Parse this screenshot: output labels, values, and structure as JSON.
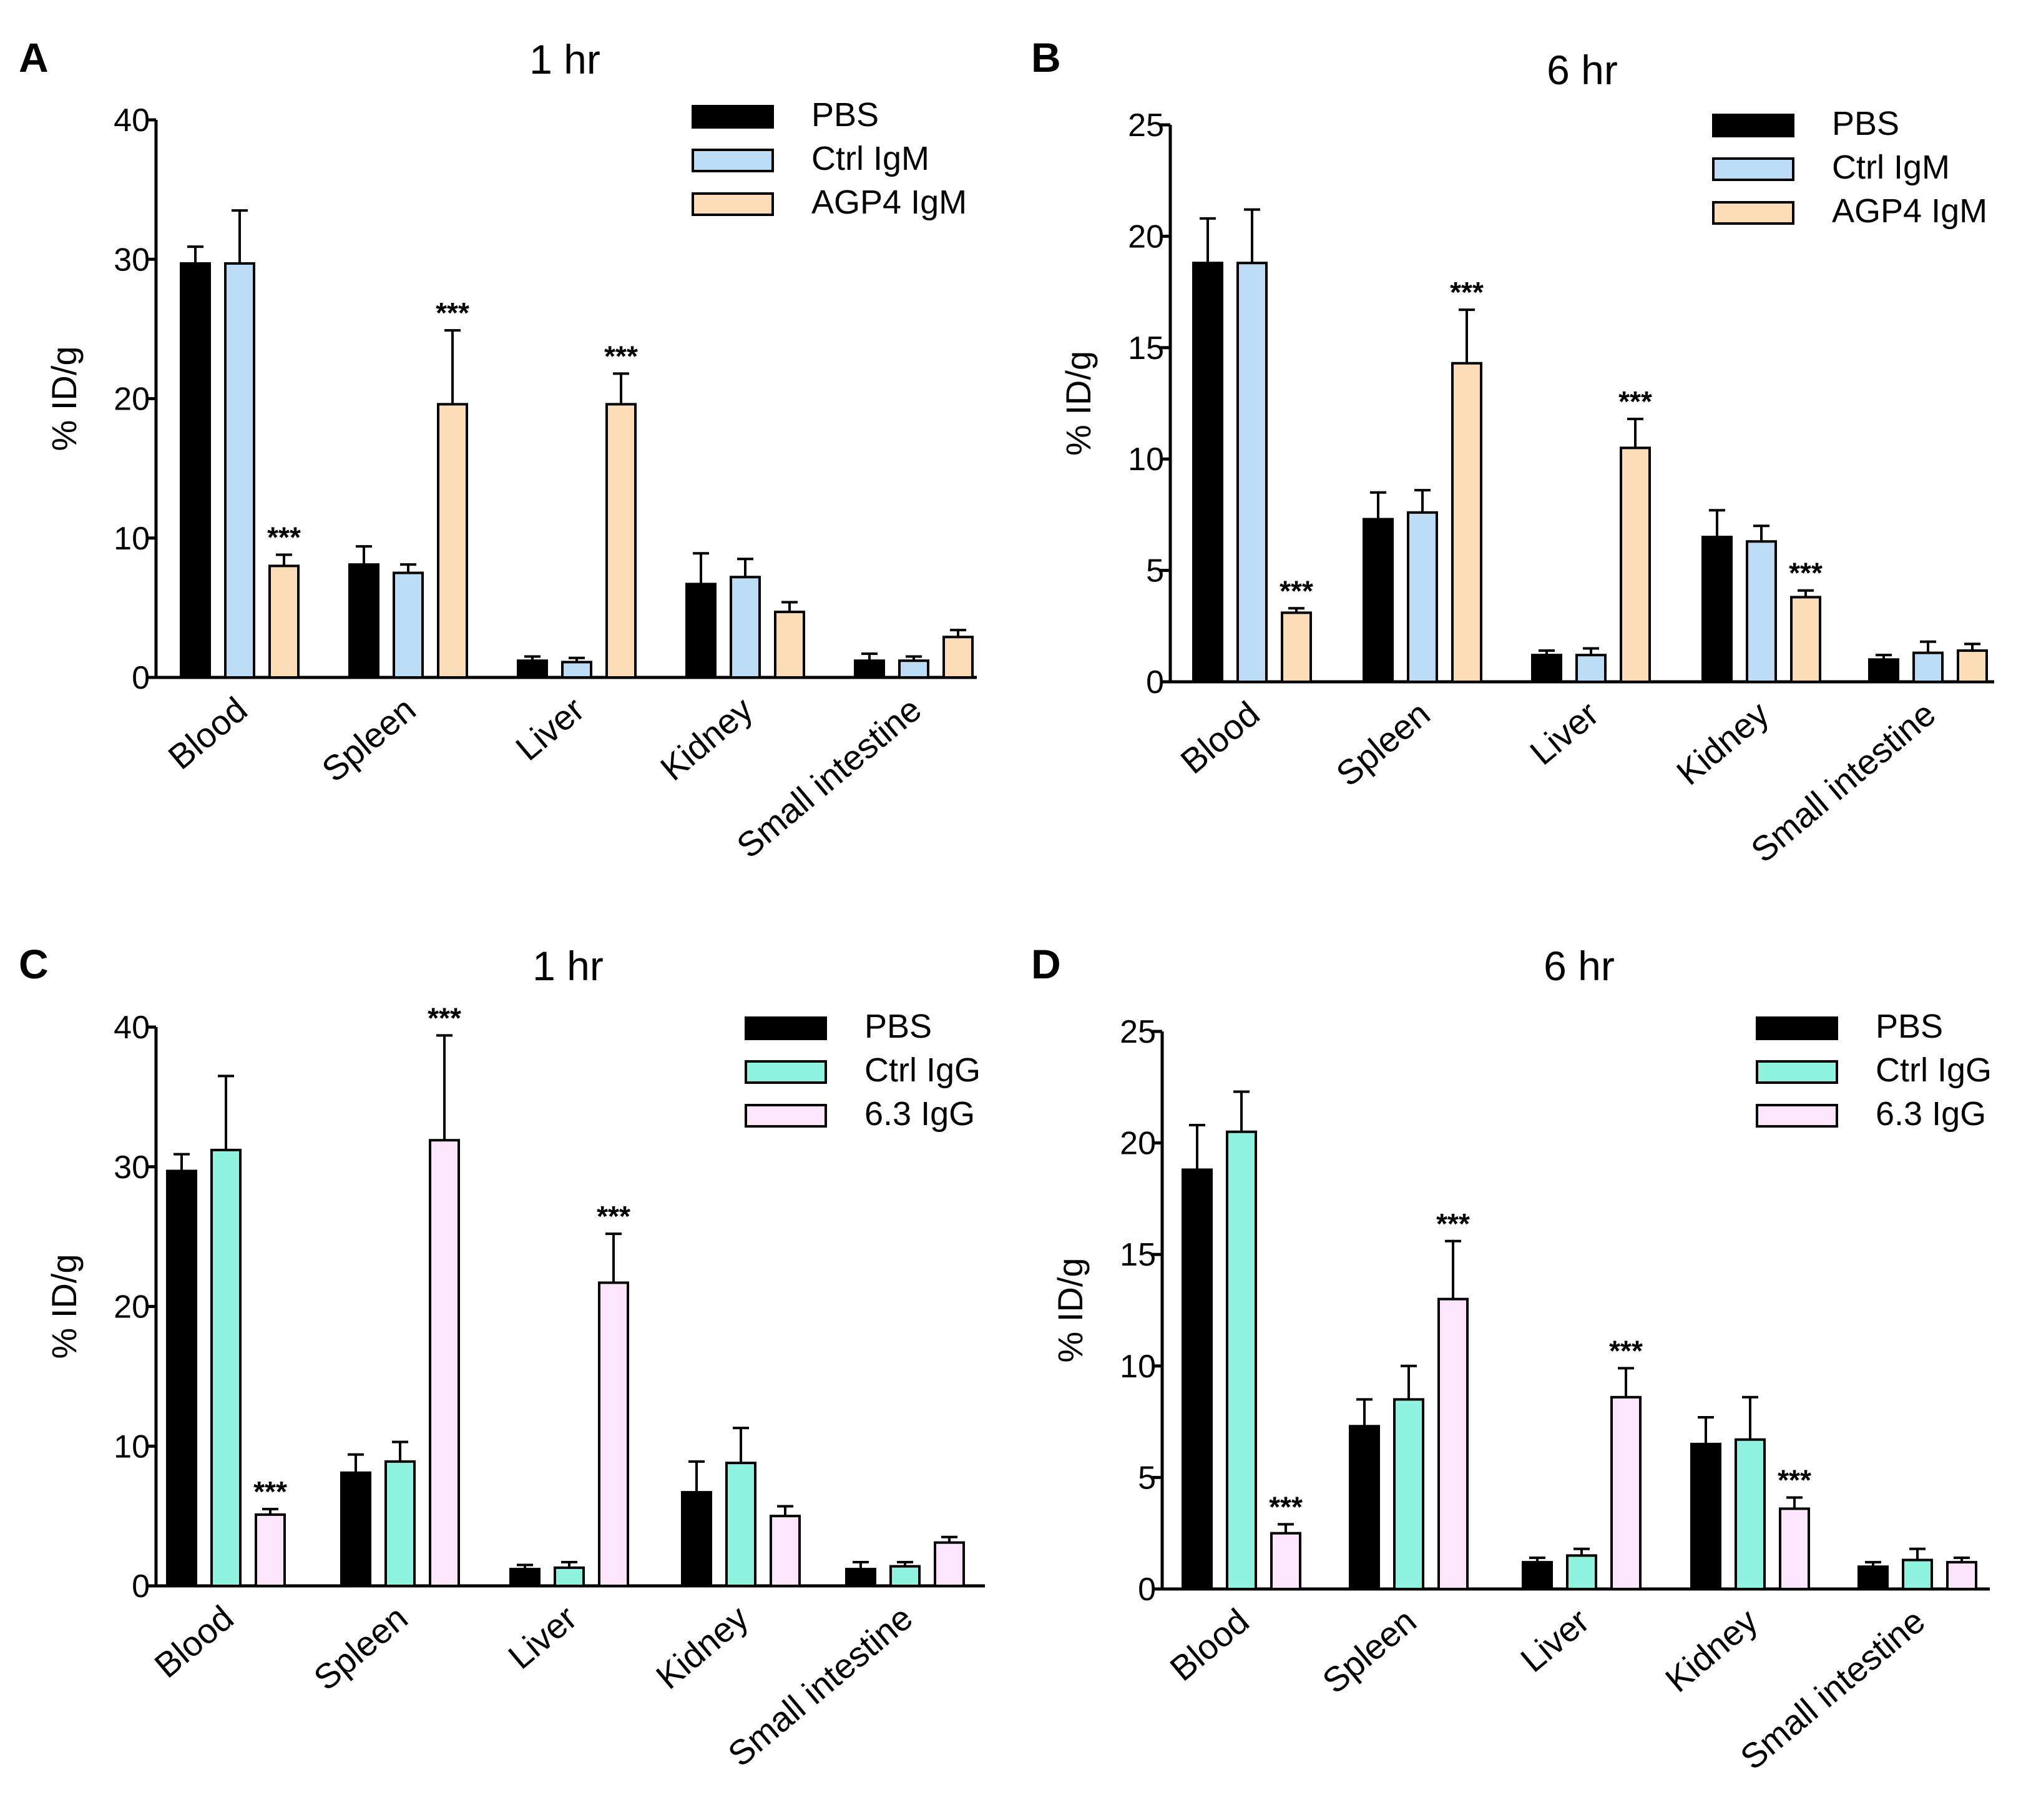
{
  "figure": {
    "panels": [
      {
        "letter": "A",
        "chart_data": {
          "type": "bar",
          "title": "1 hr",
          "xlabel": "",
          "ylabel": "% ID/g",
          "ylim": [
            0,
            40
          ],
          "yticks": [
            0,
            10,
            20,
            30,
            40
          ],
          "categories": [
            "Blood",
            "Spleen",
            "Liver",
            "Kidney",
            "Small intestine"
          ],
          "legend_position": "top-right",
          "series": [
            {
              "name": "PBS",
              "color": "#000000",
              "values": [
                29.7,
                8.1,
                1.2,
                6.7,
                1.2
              ],
              "errors": [
                1.2,
                1.3,
                0.3,
                2.2,
                0.5
              ],
              "sig": [
                "",
                "",
                "",
                "",
                ""
              ]
            },
            {
              "name": "Ctrl IgM",
              "color": "#bcdcf5",
              "values": [
                29.7,
                7.5,
                1.1,
                7.2,
                1.2
              ],
              "errors": [
                3.8,
                0.6,
                0.3,
                1.3,
                0.3
              ],
              "sig": [
                "",
                "",
                "",
                "",
                ""
              ]
            },
            {
              "name": "AGP4 IgM",
              "color": "#fbdcb7",
              "values": [
                8.0,
                19.6,
                19.6,
                4.7,
                2.9
              ],
              "errors": [
                0.8,
                5.3,
                2.2,
                0.7,
                0.5
              ],
              "sig": [
                "***",
                "***",
                "***",
                "",
                ""
              ]
            }
          ]
        }
      },
      {
        "letter": "B",
        "chart_data": {
          "type": "bar",
          "title": "6 hr",
          "xlabel": "",
          "ylabel": "% ID/g",
          "ylim": [
            0,
            25
          ],
          "yticks": [
            0,
            5,
            10,
            15,
            20,
            25
          ],
          "categories": [
            "Blood",
            "Spleen",
            "Liver",
            "Kidney",
            "Small intestine"
          ],
          "legend_position": "top-right",
          "series": [
            {
              "name": "PBS",
              "color": "#000000",
              "values": [
                18.8,
                7.3,
                1.2,
                6.5,
                1.0
              ],
              "errors": [
                2.0,
                1.2,
                0.2,
                1.2,
                0.2
              ],
              "sig": [
                "",
                "",
                "",
                "",
                ""
              ]
            },
            {
              "name": "Ctrl IgM",
              "color": "#bcdcf5",
              "values": [
                18.8,
                7.6,
                1.2,
                6.3,
                1.3
              ],
              "errors": [
                2.4,
                1.0,
                0.3,
                0.7,
                0.5
              ],
              "sig": [
                "",
                "",
                "",
                "",
                ""
              ]
            },
            {
              "name": "AGP4 IgM",
              "color": "#fbdcb7",
              "values": [
                3.1,
                14.3,
                10.5,
                3.8,
                1.4
              ],
              "errors": [
                0.2,
                2.4,
                1.3,
                0.3,
                0.3
              ],
              "sig": [
                "***",
                "***",
                "***",
                "***",
                ""
              ]
            }
          ]
        }
      },
      {
        "letter": "C",
        "chart_data": {
          "type": "bar",
          "title": "1 hr",
          "xlabel": "",
          "ylabel": "% ID/g",
          "ylim": [
            0,
            40
          ],
          "yticks": [
            0,
            10,
            20,
            30,
            40
          ],
          "categories": [
            "Blood",
            "Spleen",
            "Liver",
            "Kidney",
            "Small intestine"
          ],
          "legend_position": "top-right",
          "series": [
            {
              "name": "PBS",
              "color": "#000000",
              "values": [
                29.7,
                8.1,
                1.2,
                6.7,
                1.2
              ],
              "errors": [
                1.2,
                1.3,
                0.3,
                2.2,
                0.5
              ],
              "sig": [
                "",
                "",
                "",
                "",
                ""
              ]
            },
            {
              "name": "Ctrl IgG",
              "color": "#8ff3e0",
              "values": [
                31.2,
                8.9,
                1.3,
                8.8,
                1.4
              ],
              "errors": [
                5.3,
                1.4,
                0.4,
                2.5,
                0.3
              ],
              "sig": [
                "",
                "",
                "",
                "",
                ""
              ]
            },
            {
              "name": "6.3 IgG",
              "color": "#fde6fb",
              "values": [
                5.1,
                31.9,
                21.7,
                5.0,
                3.1
              ],
              "errors": [
                0.4,
                7.5,
                3.5,
                0.7,
                0.4
              ],
              "sig": [
                "***",
                "***",
                "***",
                "",
                ""
              ]
            }
          ]
        }
      },
      {
        "letter": "D",
        "chart_data": {
          "type": "bar",
          "title": "6 hr",
          "xlabel": "",
          "ylabel": "% ID/g",
          "ylim": [
            0,
            25
          ],
          "yticks": [
            0,
            5,
            10,
            15,
            20,
            25
          ],
          "categories": [
            "Blood",
            "Spleen",
            "Liver",
            "Kidney",
            "Small intestine"
          ],
          "legend_position": "top-right",
          "series": [
            {
              "name": "PBS",
              "color": "#000000",
              "values": [
                18.8,
                7.3,
                1.2,
                6.5,
                1.0
              ],
              "errors": [
                2.0,
                1.2,
                0.2,
                1.2,
                0.2
              ],
              "sig": [
                "",
                "",
                "",
                "",
                ""
              ]
            },
            {
              "name": "Ctrl IgG",
              "color": "#8ff3e0",
              "values": [
                20.5,
                8.5,
                1.5,
                6.7,
                1.3
              ],
              "errors": [
                1.8,
                1.5,
                0.3,
                1.9,
                0.5
              ],
              "sig": [
                "",
                "",
                "",
                "",
                ""
              ]
            },
            {
              "name": "6.3 IgG",
              "color": "#fde6fb",
              "values": [
                2.5,
                13.0,
                8.6,
                3.6,
                1.2
              ],
              "errors": [
                0.4,
                2.6,
                1.3,
                0.5,
                0.2
              ],
              "sig": [
                "***",
                "***",
                "***",
                "***",
                ""
              ]
            }
          ]
        }
      }
    ]
  }
}
